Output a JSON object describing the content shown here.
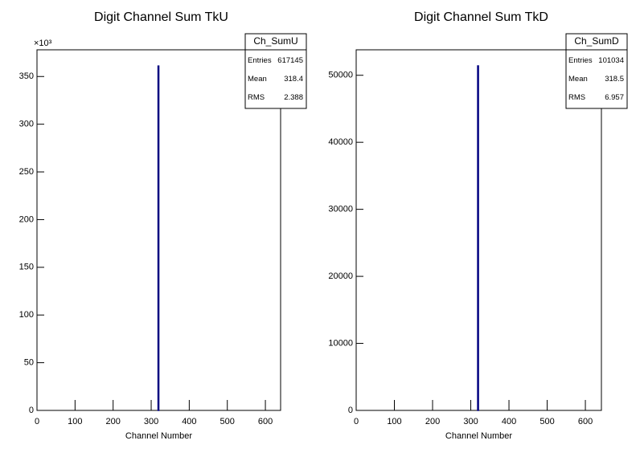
{
  "chart_data": [
    {
      "type": "histogram",
      "title": "Digit Channel Sum TkU",
      "x_label": "Channel Number",
      "y_axis_scale": "×10³",
      "bins": [
        318,
        319
      ],
      "values": [
        361
      ],
      "color": "#000080",
      "xlim": [
        0,
        640
      ],
      "xticks": [
        0,
        100,
        200,
        300,
        400,
        500,
        600
      ],
      "ylim": [
        0,
        378
      ],
      "yticks": [
        0,
        50,
        100,
        150,
        200,
        250,
        300,
        350
      ],
      "stats": {
        "name": "Ch_SumU",
        "rows": [
          [
            "Entries",
            617145
          ],
          [
            "Mean",
            318.4
          ],
          [
            "RMS",
            2.388
          ]
        ]
      }
    },
    {
      "type": "histogram",
      "title": "Digit Channel Sum TkD",
      "x_label": "Channel Number",
      "bins": [
        318,
        319
      ],
      "values": [
        51400
      ],
      "color": "#000080",
      "xlim": [
        0,
        642
      ],
      "xticks": [
        0,
        100,
        200,
        300,
        400,
        500,
        600
      ],
      "ylim": [
        0,
        53800
      ],
      "yticks": [
        0,
        10000,
        20000,
        30000,
        40000,
        50000
      ],
      "stats": {
        "name": "Ch_SumD",
        "rows": [
          [
            "Entries",
            101034
          ],
          [
            "Mean",
            318.5
          ],
          [
            "RMS",
            6.957
          ]
        ]
      }
    }
  ]
}
